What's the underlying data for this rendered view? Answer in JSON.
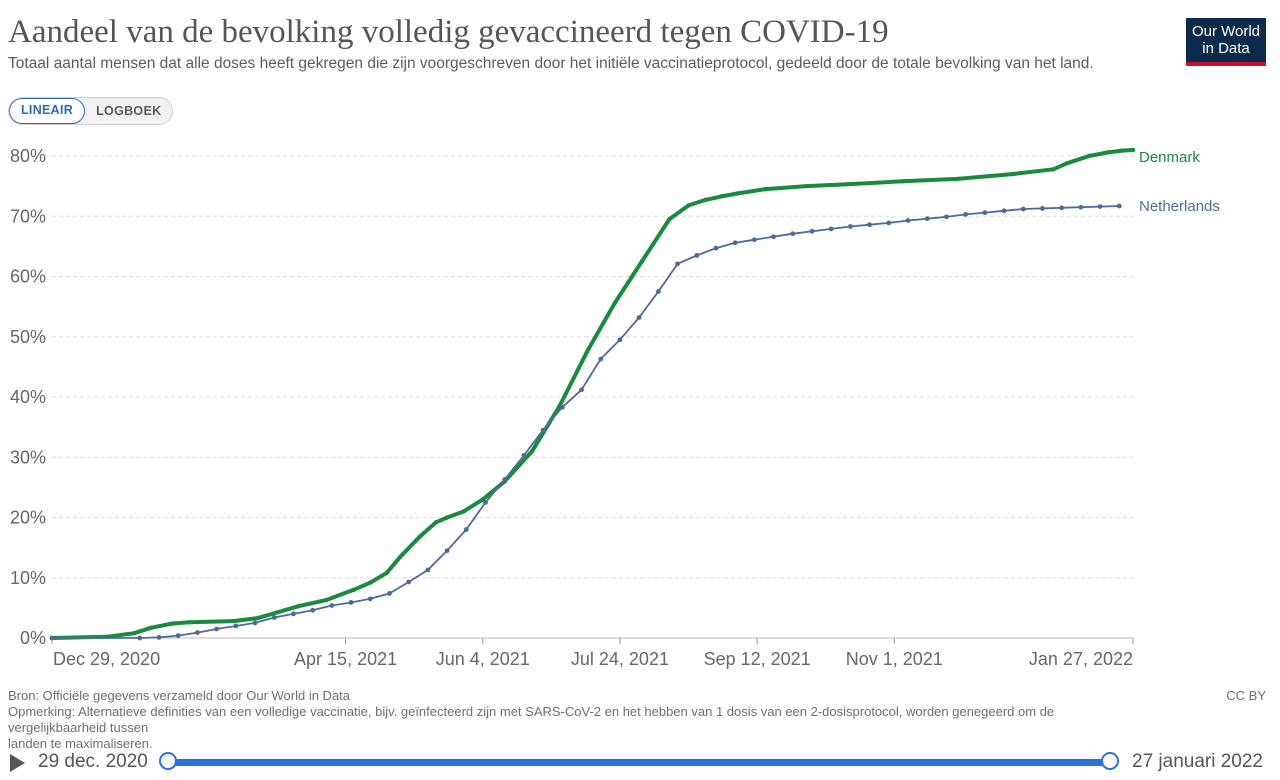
{
  "header": {
    "title": "Aandeel van de bevolking volledig gevaccineerd tegen COVID-19",
    "subtitle": "Totaal aantal mensen dat alle doses heeft gekregen die zijn voorgeschreven door het initiële vaccinatieprotocol, gedeeld door de totale bevolking van het land.",
    "logo_line1": "Our World",
    "logo_line2": "in Data"
  },
  "scale_toggle": {
    "linear_label": "LINEAIR",
    "log_label": "LOGBOEK",
    "selected": "LINEAIR"
  },
  "footer": {
    "source": "Bron: Officiële gegevens verzameld door Our World in Data",
    "note_line1": "Opmerking: Alternatieve definities van een volledige vaccinatie, bijv. geïnfecteerd zijn met SARS-CoV-2 en het hebben van 1 dosis van een 2-dosisprotocol, worden genegeerd om de",
    "note_line2": "vergelijkbaarheid tussen",
    "note_line3": "landen te maximaliseren.",
    "license": "CC BY"
  },
  "timeline": {
    "start_label": "29 dec. 2020",
    "end_label": "27 januari 2022"
  },
  "colors": {
    "denmark": "#1a8a3d",
    "netherlands": "#4e6a9c",
    "grid": "#dddddd",
    "axis_text": "#666666"
  },
  "chart_data": {
    "type": "line",
    "title": "Aandeel van de bevolking volledig gevaccineerd tegen COVID-19",
    "x_start": "2020-12-29",
    "x_end": "2022-01-27",
    "x_tick_days": [
      0,
      107,
      157,
      207,
      257,
      307,
      394
    ],
    "x_tick_labels": [
      "Dec 29, 2020",
      "Apr 15, 2021",
      "Jun 4, 2021",
      "Jul 24, 2021",
      "Sep 12, 2021",
      "Nov 1, 2021",
      "Jan 27, 2022"
    ],
    "ylim": [
      0,
      80
    ],
    "y_ticks": [
      0,
      10,
      20,
      30,
      40,
      50,
      60,
      70,
      80
    ],
    "y_tick_labels": [
      "0%",
      "10%",
      "20%",
      "30%",
      "40%",
      "50%",
      "60%",
      "70%",
      "80%"
    ],
    "xlabel": "",
    "ylabel": "",
    "series": [
      {
        "name": "Denmark",
        "x_days": [
          0,
          20,
          30,
          36,
          44,
          50,
          66,
          75,
          90,
          100,
          110,
          116,
          122,
          127,
          134,
          140,
          144,
          150,
          157,
          165,
          175,
          185,
          195,
          205,
          215,
          225,
          232,
          238,
          244,
          250,
          260,
          275,
          290,
          310,
          330,
          350,
          365,
          370,
          378,
          385,
          390,
          394
        ],
        "values": [
          0,
          0.2,
          0.8,
          1.7,
          2.4,
          2.6,
          2.8,
          3.3,
          5.3,
          6.3,
          8.0,
          9.2,
          10.8,
          13.5,
          16.8,
          19.2,
          20.0,
          21.0,
          23.0,
          26.0,
          31.0,
          38.5,
          47.5,
          55.5,
          62.5,
          69.5,
          71.8,
          72.7,
          73.3,
          73.8,
          74.5,
          75.0,
          75.3,
          75.8,
          76.2,
          77.0,
          77.8,
          78.8,
          80.0,
          80.6,
          80.9,
          81.0
        ]
      },
      {
        "name": "Netherlands",
        "x_days": [
          0,
          32,
          39,
          46,
          53,
          60,
          67,
          74,
          81,
          88,
          95,
          102,
          109,
          116,
          123,
          130,
          137,
          144,
          151,
          158,
          165,
          172,
          179,
          186,
          193,
          200,
          207,
          214,
          221,
          228,
          235,
          242,
          249,
          256,
          263,
          270,
          277,
          284,
          291,
          298,
          305,
          312,
          319,
          326,
          333,
          340,
          347,
          354,
          361,
          368,
          375,
          382,
          389
        ],
        "values": [
          0,
          0,
          0.1,
          0.4,
          0.9,
          1.5,
          2.0,
          2.5,
          3.4,
          4.0,
          4.6,
          5.4,
          5.9,
          6.5,
          7.4,
          9.3,
          11.3,
          14.5,
          18.0,
          22.5,
          26.3,
          30.3,
          34.5,
          38.3,
          41.2,
          46.3,
          49.5,
          53.2,
          57.5,
          62.1,
          63.5,
          64.7,
          65.6,
          66.1,
          66.6,
          67.1,
          67.5,
          67.9,
          68.3,
          68.6,
          68.9,
          69.3,
          69.6,
          69.9,
          70.3,
          70.6,
          70.9,
          71.2,
          71.3,
          71.4,
          71.5,
          71.6,
          71.7
        ]
      }
    ],
    "legend": [
      "Denmark",
      "Netherlands"
    ]
  }
}
